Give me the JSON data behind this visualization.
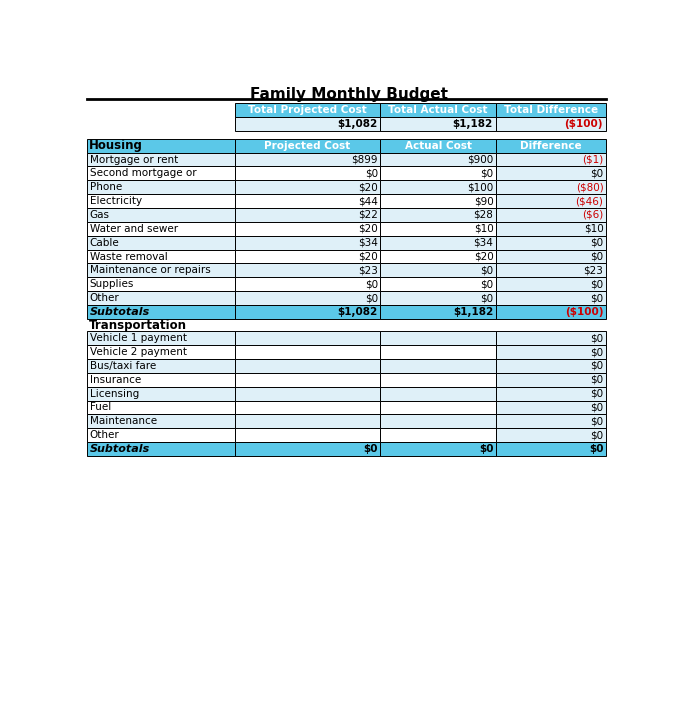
{
  "title": "Family Monthly Budget",
  "title_fontsize": 11,
  "header_bg": "#5bc8e8",
  "header_text_color": "#ffffff",
  "cell_bg_light": "#dff0f8",
  "cell_bg_white": "#ffffff",
  "text_color_black": "#000000",
  "text_color_red": "#cc0000",
  "summary_headers": [
    "Total Projected Cost",
    "Total Actual Cost",
    "Total Difference"
  ],
  "summary_values": [
    "$1,082",
    "$1,182",
    "($100)"
  ],
  "summary_diff_red": true,
  "col_headers": [
    "Projected Cost",
    "Actual Cost",
    "Difference"
  ],
  "section1_title": "Housing",
  "section1_rows": [
    {
      "label": "Mortgage or rent",
      "proj": "$899",
      "act": "$900",
      "diff": "($1)",
      "diff_red": true
    },
    {
      "label": "Second mortgage or",
      "proj": "$0",
      "act": "$0",
      "diff": "$0",
      "diff_red": false
    },
    {
      "label": "Phone",
      "proj": "$20",
      "act": "$100",
      "diff": "($80)",
      "diff_red": true
    },
    {
      "label": "Electricity",
      "proj": "$44",
      "act": "$90",
      "diff": "($46)",
      "diff_red": true
    },
    {
      "label": "Gas",
      "proj": "$22",
      "act": "$28",
      "diff": "($6)",
      "diff_red": true
    },
    {
      "label": "Water and sewer",
      "proj": "$20",
      "act": "$10",
      "diff": "$10",
      "diff_red": false
    },
    {
      "label": "Cable",
      "proj": "$34",
      "act": "$34",
      "diff": "$0",
      "diff_red": false
    },
    {
      "label": "Waste removal",
      "proj": "$20",
      "act": "$20",
      "diff": "$0",
      "diff_red": false
    },
    {
      "label": "Maintenance or repairs",
      "proj": "$23",
      "act": "$0",
      "diff": "$23",
      "diff_red": false
    },
    {
      "label": "Supplies",
      "proj": "$0",
      "act": "$0",
      "diff": "$0",
      "diff_red": false
    },
    {
      "label": "Other",
      "proj": "$0",
      "act": "$0",
      "diff": "$0",
      "diff_red": false
    }
  ],
  "section1_subtotal": {
    "label": "Subtotals",
    "proj": "$1,082",
    "act": "$1,182",
    "diff": "($100)",
    "diff_red": true
  },
  "section2_title": "Transportation",
  "section2_rows": [
    {
      "label": "Vehicle 1 payment",
      "proj": "",
      "act": "",
      "diff": "$0",
      "diff_red": false
    },
    {
      "label": "Vehicle 2 payment",
      "proj": "",
      "act": "",
      "diff": "$0",
      "diff_red": false
    },
    {
      "label": "Bus/taxi fare",
      "proj": "",
      "act": "",
      "diff": "$0",
      "diff_red": false
    },
    {
      "label": "Insurance",
      "proj": "",
      "act": "",
      "diff": "$0",
      "diff_red": false
    },
    {
      "label": "Licensing",
      "proj": "",
      "act": "",
      "diff": "$0",
      "diff_red": false
    },
    {
      "label": "Fuel",
      "proj": "",
      "act": "",
      "diff": "$0",
      "diff_red": false
    },
    {
      "label": "Maintenance",
      "proj": "",
      "act": "",
      "diff": "$0",
      "diff_red": false
    },
    {
      "label": "Other",
      "proj": "",
      "act": "",
      "diff": "$0",
      "diff_red": false
    }
  ],
  "section2_subtotal": {
    "label": "Subtotals",
    "proj": "$0",
    "act": "$0",
    "diff": "$0",
    "diff_red": false
  },
  "col_starts": [
    3,
    193,
    381,
    530
  ],
  "col_ends": [
    193,
    381,
    530,
    672
  ],
  "summary_col_starts": [
    193,
    381,
    530
  ],
  "summary_col_ends": [
    381,
    530,
    672
  ]
}
